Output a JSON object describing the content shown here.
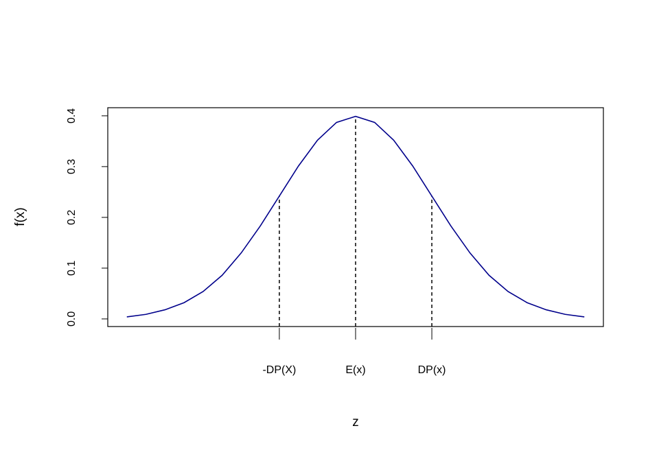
{
  "chart_data": {
    "type": "line",
    "x_label": "z",
    "y_label": "f(x)",
    "x": [
      -3,
      -2.75,
      -2.5,
      -2.25,
      -2,
      -1.75,
      -1.5,
      -1.25,
      -1,
      -0.75,
      -0.5,
      -0.25,
      0,
      0.25,
      0.5,
      0.75,
      1,
      1.25,
      1.5,
      1.75,
      2,
      2.25,
      2.5,
      2.75,
      3
    ],
    "series": [
      {
        "color": "#00008b",
        "values": [
          0.004,
          0.009,
          0.018,
          0.032,
          0.054,
          0.086,
          0.13,
          0.183,
          0.242,
          0.301,
          0.352,
          0.387,
          0.399,
          0.387,
          0.352,
          0.301,
          0.242,
          0.183,
          0.13,
          0.086,
          0.054,
          0.032,
          0.018,
          0.009,
          0.004
        ]
      }
    ],
    "reference_lines": {
      "x": [
        -1,
        0,
        1
      ],
      "values": [
        0.242,
        0.399,
        0.242
      ]
    },
    "xlim": [
      -3.25,
      3.25
    ],
    "ylim": [
      -0.015,
      0.416
    ],
    "xticks": [
      {
        "value": -1,
        "label": "-DP(X)"
      },
      {
        "value": 0,
        "label": "E(x)"
      },
      {
        "value": 1,
        "label": "DP(x)"
      }
    ],
    "yticks": [
      {
        "value": 0,
        "label": "0.0"
      },
      0.1,
      0.2,
      0.3,
      0.4
    ]
  }
}
